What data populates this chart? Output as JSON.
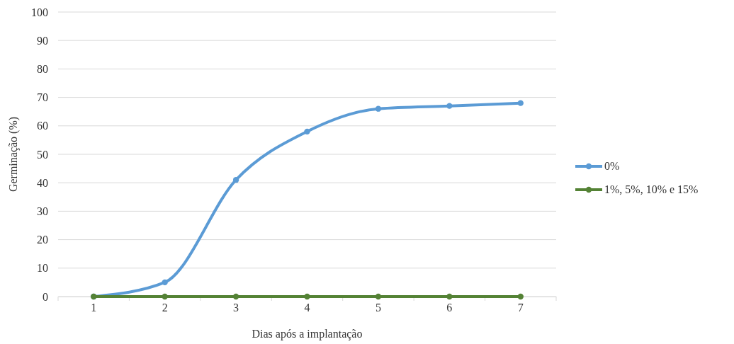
{
  "chart_data": {
    "type": "line",
    "xlabel": "Dias após a implantação",
    "ylabel": "Germinação (%)",
    "categories": [
      "1",
      "2",
      "3",
      "4",
      "5",
      "6",
      "7"
    ],
    "series": [
      {
        "name": "0%",
        "color": "#5b9bd5",
        "values": [
          0,
          5,
          41,
          58,
          66,
          67,
          68
        ]
      },
      {
        "name": "1%, 5%, 10% e 15%",
        "color": "#548235",
        "values": [
          0,
          0,
          0,
          0,
          0,
          0,
          0
        ]
      }
    ],
    "ylim": [
      0,
      100
    ],
    "yticks": [
      0,
      10,
      20,
      30,
      40,
      50,
      60,
      70,
      80,
      90,
      100
    ],
    "grid": "y",
    "legend": "right",
    "marker": "circle",
    "line_style": "solid"
  }
}
